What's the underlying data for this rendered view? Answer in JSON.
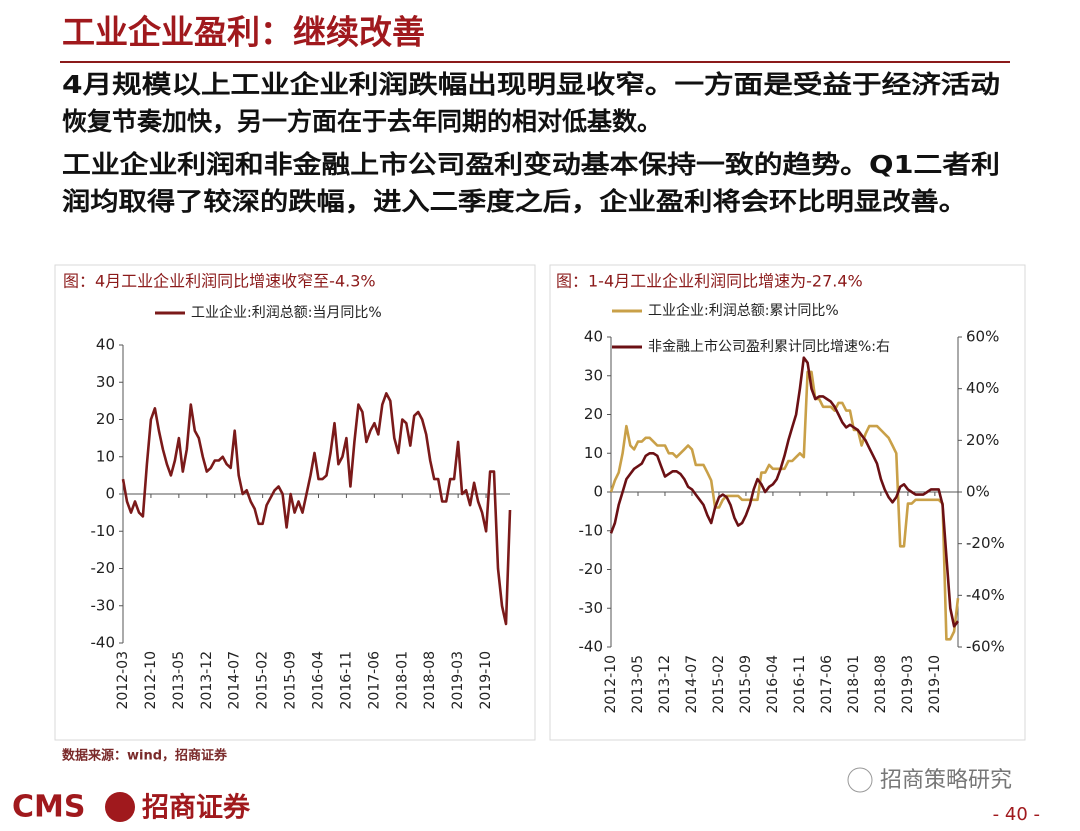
{
  "header": {
    "title": "工业企业盈利：继续改善"
  },
  "paragraphs": [
    [
      "4月规模以上工业企业利润跌幅出现明显收窄。一方面是受益于经济活动",
      "恢复节奏加快，另一方面在于去年同期的相对低基数。"
    ],
    [
      "工业企业利润和非金融上市公司盈利变动基本保持一致的趋势。Q1二者利",
      "润均取得了较深的跌幅，进入二季度之后，企业盈利将会环比明显改善。"
    ]
  ],
  "chart_data": [
    {
      "type": "line",
      "title": "图：4月工业企业利润同比增速收窄至-4.3%",
      "categories": [
        "2012-03",
        null,
        null,
        null,
        null,
        null,
        null,
        "2012-10",
        null,
        null,
        null,
        null,
        null,
        null,
        "2013-05",
        null,
        null,
        null,
        null,
        null,
        null,
        "2013-12",
        null,
        null,
        null,
        null,
        null,
        null,
        "2014-07",
        null,
        null,
        null,
        null,
        null,
        null,
        "2015-02",
        null,
        null,
        null,
        null,
        null,
        null,
        "2015-09",
        null,
        null,
        null,
        null,
        null,
        null,
        "2016-04",
        null,
        null,
        null,
        null,
        null,
        null,
        "2016-11",
        null,
        null,
        null,
        null,
        null,
        null,
        "2017-06",
        null,
        null,
        null,
        null,
        null,
        null,
        "2018-01",
        null,
        null,
        null,
        null,
        null,
        null,
        "2018-08",
        null,
        null,
        null,
        null,
        null,
        null,
        "2019-03",
        null,
        null,
        null,
        null,
        null,
        null,
        "2019-10",
        null,
        null,
        null,
        null,
        null,
        null
      ],
      "series": [
        {
          "name": "工业企业:利润总额:当月同比%",
          "color": "#7b1a1a",
          "values": [
            4,
            -2,
            -5,
            -2,
            -5,
            -6,
            8,
            20,
            23,
            17,
            12,
            8,
            5,
            9,
            15,
            6,
            12,
            24,
            17,
            15,
            10,
            6,
            7,
            9,
            9,
            10,
            8,
            7,
            17,
            5,
            0,
            1,
            -2,
            -4,
            -8,
            -8,
            -3,
            -1,
            1,
            2,
            0,
            -9,
            0,
            -5,
            -2,
            -5,
            0,
            5,
            11,
            4,
            4,
            5,
            11,
            19,
            8,
            10,
            15,
            2,
            14,
            24,
            22,
            14,
            17,
            19,
            16,
            24,
            27,
            25,
            15,
            11,
            20,
            19,
            13,
            21,
            22,
            20,
            16,
            9,
            4,
            4,
            -2,
            -2,
            4,
            4,
            14,
            0,
            1,
            -3,
            3,
            -2,
            -5,
            -10,
            6,
            6,
            -20,
            -30,
            -34.9,
            -4.3
          ]
        }
      ],
      "ylim": [
        -40,
        40
      ],
      "yticks": [
        40,
        30,
        20,
        10,
        0,
        -10,
        -20,
        -30,
        -40
      ]
    },
    {
      "type": "line",
      "title": "图：1-4月工业企业利润同比增速为-27.4%",
      "categories": [
        "2012-10",
        null,
        null,
        null,
        null,
        null,
        null,
        "2013-05",
        null,
        null,
        null,
        null,
        null,
        null,
        "2013-12",
        null,
        null,
        null,
        null,
        null,
        null,
        "2014-07",
        null,
        null,
        null,
        null,
        null,
        null,
        "2015-02",
        null,
        null,
        null,
        null,
        null,
        null,
        "2015-09",
        null,
        null,
        null,
        null,
        null,
        null,
        "2016-04",
        null,
        null,
        null,
        null,
        null,
        null,
        "2016-11",
        null,
        null,
        null,
        null,
        null,
        null,
        "2017-06",
        null,
        null,
        null,
        null,
        null,
        null,
        "2018-01",
        null,
        null,
        null,
        null,
        null,
        null,
        "2018-08",
        null,
        null,
        null,
        null,
        null,
        null,
        "2019-03",
        null,
        null,
        null,
        null,
        null,
        null,
        "2019-10",
        null,
        null,
        null,
        null,
        null,
        null
      ],
      "series": [
        {
          "name": "工业企业:利润总额:累计同比%",
          "color": "#c9a048",
          "values": [
            0,
            3,
            5,
            10,
            17,
            12,
            11,
            13,
            13,
            14,
            14,
            13,
            12,
            12,
            12,
            10,
            10,
            9,
            10,
            11,
            12,
            11,
            7,
            7,
            7,
            5,
            3,
            -4,
            -4,
            -2,
            -1,
            -1,
            -1,
            -1,
            -2,
            -2,
            -2,
            -2,
            -2,
            5,
            5,
            7,
            6,
            6,
            6,
            6,
            8,
            8,
            9,
            10,
            9,
            31,
            31,
            24,
            24,
            22,
            22,
            22,
            21,
            23,
            23,
            21,
            21,
            16,
            16,
            12,
            15,
            17,
            17,
            17,
            16,
            15,
            14,
            12,
            10,
            -14,
            -14,
            -3,
            -3,
            -2,
            -2,
            -2,
            -2,
            -2,
            -2,
            -2,
            -3,
            -38,
            -38,
            -36,
            -27.4
          ]
        },
        {
          "name": "非金融上市公司盈利累计同比增速%:右",
          "color": "#6b1014",
          "axis": "y2",
          "values": [
            -16,
            -12,
            -5,
            0,
            5,
            7,
            9,
            10,
            11,
            14,
            15,
            15,
            14,
            10,
            6,
            7,
            8,
            8,
            7,
            5,
            2,
            1,
            -1,
            -3,
            -5,
            -9,
            -12,
            -6,
            -2,
            -1,
            -2,
            -5,
            -10,
            -13,
            -12,
            -9,
            -5,
            1,
            5,
            3,
            0,
            2,
            3,
            5,
            9,
            14,
            20,
            25,
            30,
            40,
            52,
            50,
            40,
            36,
            37,
            37,
            36,
            35,
            33,
            30,
            27,
            25,
            26,
            25,
            24,
            22,
            20,
            17,
            14,
            11,
            5,
            1,
            -2,
            -4,
            -2,
            2,
            3,
            1,
            0,
            -1,
            -1,
            -1,
            0,
            1,
            1,
            1,
            -5,
            -25,
            -45,
            -52,
            -50
          ]
        }
      ],
      "ylim": [
        -40,
        40
      ],
      "yticks": [
        40,
        30,
        20,
        10,
        0,
        -10,
        -20,
        -30,
        -40
      ],
      "y2lim": [
        -60,
        60
      ],
      "y2ticks": [
        {
          "value": 60,
          "label": "60%"
        },
        {
          "value": 40,
          "label": "40%"
        },
        {
          "value": 20,
          "label": "20%"
        },
        {
          "value": 0,
          "label": "0%"
        },
        {
          "value": -20,
          "label": "-20%"
        },
        {
          "value": -40,
          "label": "-40%"
        },
        {
          "value": -60,
          "label": "-60%"
        }
      ]
    }
  ],
  "source": "数据来源：wind，招商证券",
  "footer": {
    "logo": "CMS",
    "company": "招商证券",
    "watermark": "招商策略研究",
    "page": "- 40 -"
  }
}
